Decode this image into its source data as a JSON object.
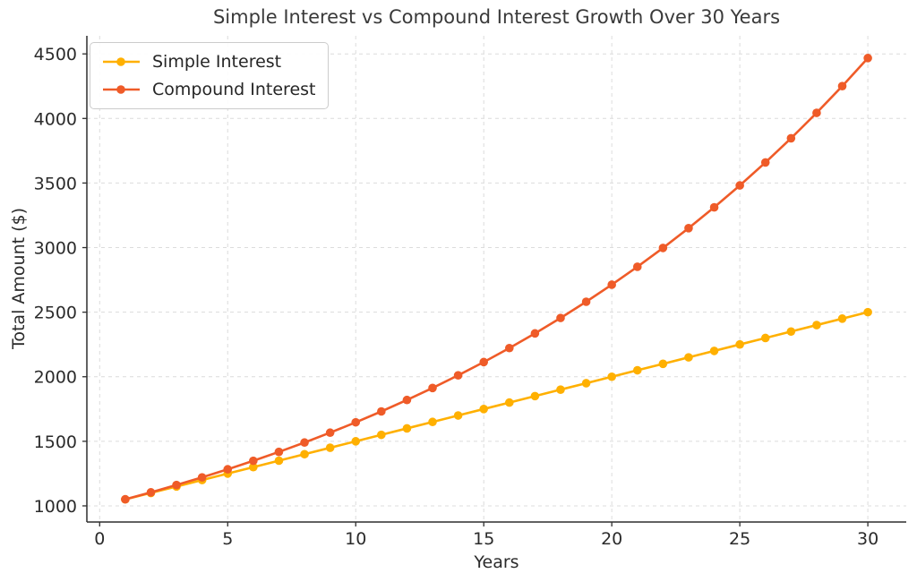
{
  "chart_data": {
    "type": "line",
    "title": "Simple Interest vs Compound Interest Growth Over 30 Years",
    "xlabel": "Years",
    "ylabel": "Total Amount ($)",
    "x": [
      1,
      2,
      3,
      4,
      5,
      6,
      7,
      8,
      9,
      10,
      11,
      12,
      13,
      14,
      15,
      16,
      17,
      18,
      19,
      20,
      21,
      22,
      23,
      24,
      25,
      26,
      27,
      28,
      29,
      30
    ],
    "series": [
      {
        "name": "Simple Interest",
        "color": "#FFB000",
        "values": [
          1050,
          1100,
          1150,
          1200,
          1250,
          1300,
          1350,
          1400,
          1450,
          1500,
          1550,
          1600,
          1650,
          1700,
          1750,
          1800,
          1850,
          1900,
          1950,
          2000,
          2050,
          2100,
          2150,
          2200,
          2250,
          2300,
          2350,
          2400,
          2450,
          2500
        ]
      },
      {
        "name": "Compound Interest",
        "color": "#EF5B28",
        "values": [
          1051.16,
          1104.94,
          1161.47,
          1220.9,
          1283.36,
          1349.02,
          1418.04,
          1490.59,
          1566.85,
          1647.01,
          1731.28,
          1819.86,
          1912.96,
          2010.84,
          2113.72,
          2221.86,
          2335.53,
          2455.02,
          2580.63,
          2712.66,
          2851.44,
          2997.33,
          3150.68,
          3311.88,
          3481.32,
          3659.43,
          3846.65,
          4043.46,
          4250.33,
          4467.78
        ]
      }
    ],
    "xticks": [
      0,
      5,
      10,
      15,
      20,
      25,
      30
    ],
    "yticks": [
      1000,
      1500,
      2000,
      2500,
      3000,
      3500,
      4000,
      4500
    ],
    "xlim": [
      -0.5,
      31.5
    ],
    "ylim": [
      875,
      4640
    ],
    "grid": "dashed",
    "grid_color": "#dcdcdc",
    "spine_color": "#2f2f2f",
    "text_color": "#2b2b2b",
    "legend_position": "upper left"
  }
}
